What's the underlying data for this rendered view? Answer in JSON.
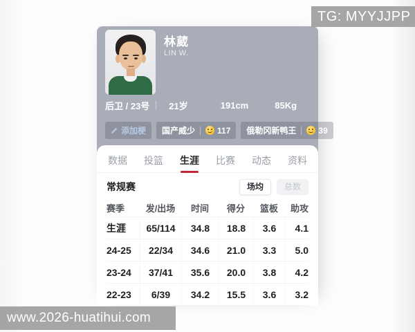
{
  "overlay": {
    "tg_label": "TG: MYYJJPP",
    "watermark": "www.2026-huatihui.com"
  },
  "player": {
    "name": "林葳",
    "name_en": "LIN W.",
    "position_number": "后卫 / 23号",
    "age": "21岁",
    "height": "191cm",
    "weight": "85Kg",
    "add_badge_label": "添加梗",
    "badges": [
      {
        "key": "guochan-weishao",
        "label": "国产威少",
        "emoji": "zany-face-emoji",
        "count": "117"
      },
      {
        "key": "elegang-xinyawang",
        "label": "俄勒冈新鸭王",
        "emoji": "smirking-face-emoji",
        "count": "39"
      }
    ]
  },
  "tabs": {
    "active_index": 2,
    "items": [
      {
        "key": "data",
        "label": "数据"
      },
      {
        "key": "shooting",
        "label": "投篮"
      },
      {
        "key": "career",
        "label": "生涯"
      },
      {
        "key": "games",
        "label": "比赛"
      },
      {
        "key": "feed",
        "label": "动态"
      },
      {
        "key": "profile",
        "label": "资料"
      }
    ]
  },
  "stats": {
    "section_title": "常规赛",
    "toggle": {
      "options": [
        "场均",
        "总数"
      ],
      "active": "场均"
    },
    "chart_data": {
      "type": "table",
      "title": "常规赛 场均数据",
      "headers": [
        "赛季",
        "发/出场",
        "时间",
        "得分",
        "篮板",
        "助攻"
      ],
      "rows": [
        [
          "生涯",
          "65/114",
          "34.8",
          "18.8",
          "3.6",
          "4.1"
        ],
        [
          "24-25",
          "22/34",
          "34.6",
          "21.0",
          "3.3",
          "5.0"
        ],
        [
          "23-24",
          "37/41",
          "35.6",
          "20.0",
          "3.8",
          "4.2"
        ],
        [
          "22-23",
          "6/39",
          "34.2",
          "15.5",
          "3.6",
          "3.2"
        ]
      ]
    }
  },
  "colors": {
    "header_bg": "#a8adb8",
    "card_bg": "#ffffff",
    "accent_red": "#c2273a",
    "badge_text_blue": "#b7c8e2",
    "tab_inactive": "#9aa0a8",
    "tab_active": "#26282c"
  }
}
